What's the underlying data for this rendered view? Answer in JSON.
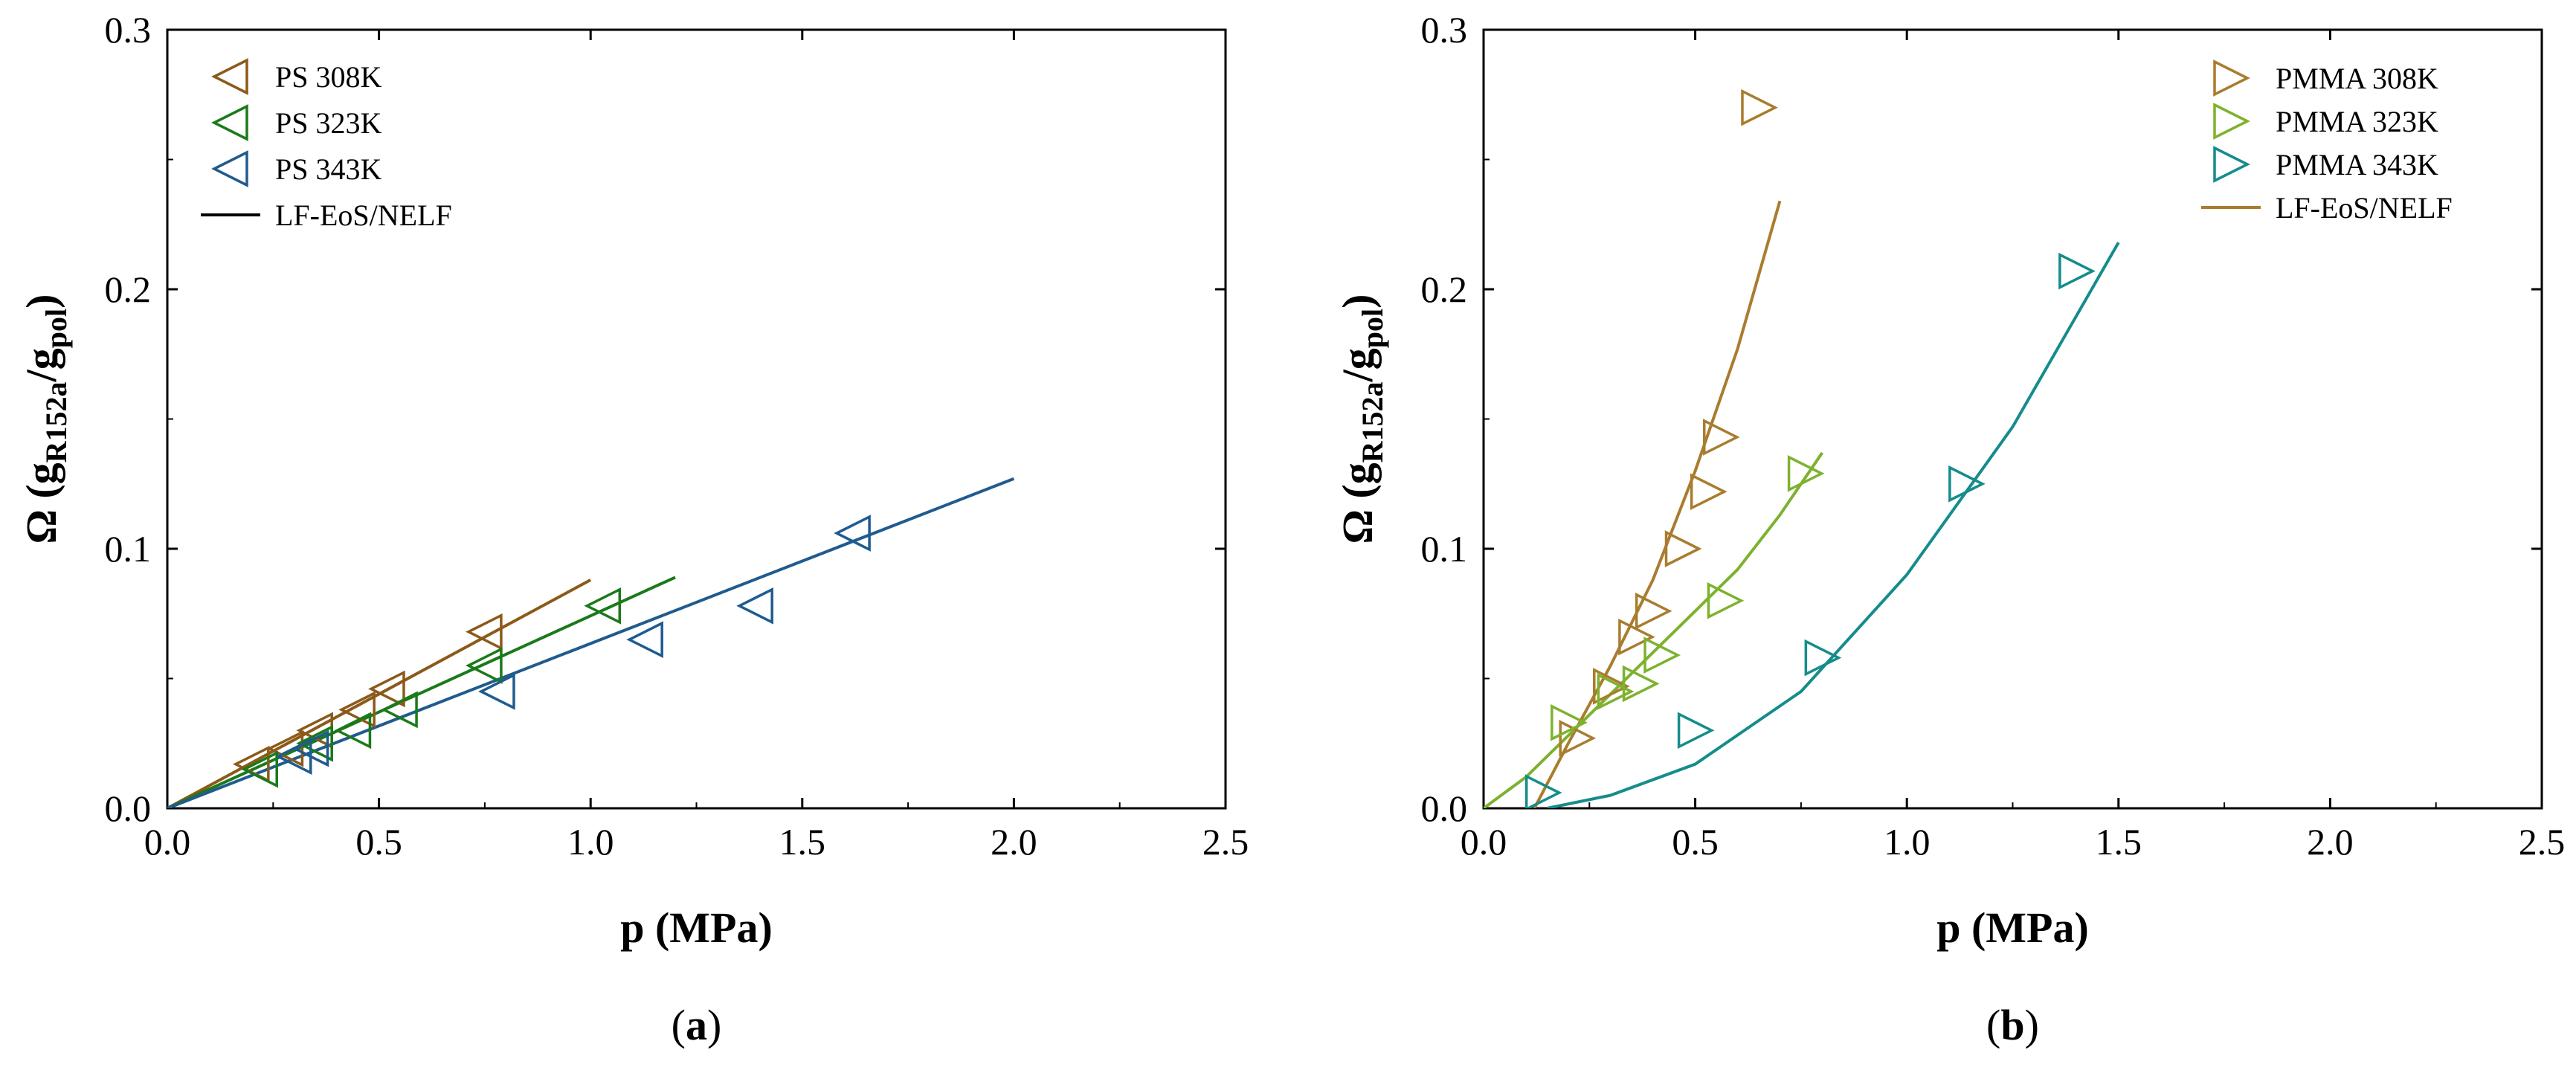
{
  "chart_data": [
    {
      "type": "scatter",
      "panel_label_open": "(",
      "panel_label": "a",
      "panel_label_close": ")",
      "xlabel": "p (MPa)",
      "ylabel": {
        "prefix": "Ω (g",
        "sub1": "R152a",
        "mid": "/g",
        "sub2": "pol",
        "suffix": ")"
      },
      "xlim": [
        0,
        2.5
      ],
      "ylim": [
        0,
        0.3
      ],
      "xticks": [
        0,
        0.5,
        1.0,
        1.5,
        2.0,
        2.5
      ],
      "xtick_labels": [
        "0.0",
        "0.5",
        "1.0",
        "1.5",
        "2.0",
        "2.5"
      ],
      "yticks": [
        0,
        0.1,
        0.2,
        0.3
      ],
      "ytick_labels": [
        "0.0",
        "0.1",
        "0.2",
        "0.3"
      ],
      "legend_position": "top-left",
      "marker": "triangle-left",
      "series": [
        {
          "name": "PS 308K",
          "color": "#8B5A1A",
          "x": [
            0.2,
            0.28,
            0.35,
            0.45,
            0.52,
            0.75
          ],
          "y": [
            0.017,
            0.023,
            0.03,
            0.038,
            0.046,
            0.068
          ]
        },
        {
          "name": "PS 323K",
          "color": "#1A7A1A",
          "x": [
            0.22,
            0.35,
            0.44,
            0.55,
            0.75,
            1.03
          ],
          "y": [
            0.015,
            0.025,
            0.03,
            0.038,
            0.055,
            0.078
          ]
        },
        {
          "name": "PS 343K",
          "color": "#1F5B8F",
          "x": [
            0.3,
            0.34,
            0.78,
            1.13,
            1.39,
            1.62
          ],
          "y": [
            0.02,
            0.023,
            0.045,
            0.065,
            0.078,
            0.106
          ]
        }
      ],
      "model_lines": [
        {
          "color": "#8B5A1A",
          "x": [
            0,
            1.0
          ],
          "y": [
            0,
            0.088
          ]
        },
        {
          "color": "#1A7A1A",
          "x": [
            0,
            1.2
          ],
          "y": [
            0,
            0.089
          ]
        },
        {
          "color": "#1F5B8F",
          "x": [
            0,
            2.0
          ],
          "y": [
            0,
            0.127
          ]
        }
      ],
      "model_legend": {
        "name": "LF-EoS/NELF",
        "color": "#000000"
      }
    },
    {
      "type": "scatter",
      "panel_label_open": "(",
      "panel_label": "b",
      "panel_label_close": ")",
      "xlabel": "p (MPa)",
      "ylabel": {
        "prefix": "Ω (g",
        "sub1": "R152a",
        "mid": "/g",
        "sub2": "pol",
        "suffix": ")"
      },
      "xlim": [
        0,
        2.5
      ],
      "ylim": [
        0,
        0.3
      ],
      "xticks": [
        0,
        0.5,
        1.0,
        1.5,
        2.0,
        2.5
      ],
      "xtick_labels": [
        "0.0",
        "0.5",
        "1.0",
        "1.5",
        "2.0",
        "2.5"
      ],
      "yticks": [
        0,
        0.1,
        0.2,
        0.3
      ],
      "ytick_labels": [
        "0.0",
        "0.1",
        "0.2",
        "0.3"
      ],
      "legend_position": "top-right",
      "marker": "triangle-right",
      "series": [
        {
          "name": "PMMA 308K",
          "color": "#A97C2E",
          "x": [
            0.22,
            0.3,
            0.36,
            0.4,
            0.47,
            0.53,
            0.56,
            0.65
          ],
          "y": [
            0.027,
            0.047,
            0.066,
            0.076,
            0.1,
            0.122,
            0.143,
            0.27
          ]
        },
        {
          "name": "PMMA 323K",
          "color": "#7DB22E",
          "x": [
            0.2,
            0.31,
            0.37,
            0.42,
            0.57,
            0.76
          ],
          "y": [
            0.033,
            0.045,
            0.048,
            0.059,
            0.08,
            0.129
          ]
        },
        {
          "name": "PMMA 343K",
          "color": "#158C8C",
          "x": [
            0.14,
            0.5,
            0.8,
            1.14,
            1.4
          ],
          "y": [
            0.006,
            0.03,
            0.058,
            0.125,
            0.207
          ]
        }
      ],
      "model_lines": [
        {
          "color": "#A97C2E",
          "x": [
            0.12,
            0.2,
            0.3,
            0.4,
            0.5,
            0.6,
            0.7
          ],
          "y": [
            0.0,
            0.025,
            0.055,
            0.088,
            0.13,
            0.177,
            0.234
          ]
        },
        {
          "color": "#7DB22E",
          "x": [
            0,
            0.1,
            0.2,
            0.3,
            0.4,
            0.5,
            0.6,
            0.7,
            0.8
          ],
          "y": [
            0,
            0.012,
            0.028,
            0.044,
            0.06,
            0.076,
            0.092,
            0.113,
            0.137
          ]
        },
        {
          "color": "#158C8C",
          "x": [
            0.15,
            0.3,
            0.5,
            0.75,
            1.0,
            1.25,
            1.5
          ],
          "y": [
            0.0,
            0.005,
            0.017,
            0.045,
            0.09,
            0.147,
            0.218
          ]
        }
      ],
      "model_legend": {
        "name": "LF-EoS/NELF",
        "color": "#A97C2E"
      }
    }
  ]
}
